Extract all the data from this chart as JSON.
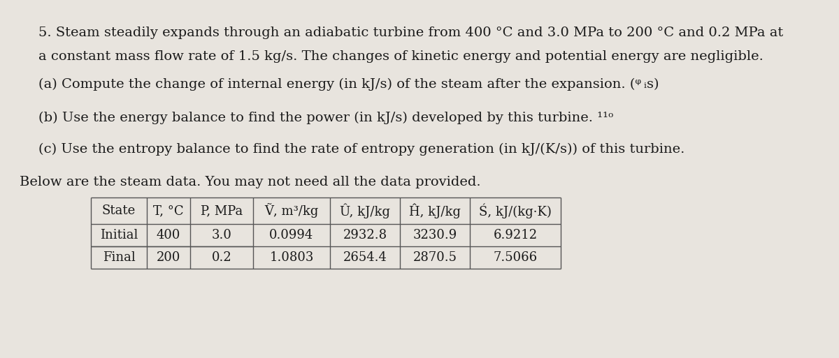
{
  "background_color": "#e8e4de",
  "text_color": "#1a1a1a",
  "title_line1": "5. Steam steadily expands through an adiabatic turbine from 400 °C and 3.0 MPa to 200 °C and 0.2 MPa at",
  "title_line2": "a constant mass flow rate of 1.5 kg/s. The changes of kinetic energy and potential energy are negligible.",
  "part_a": "(a) Compute the change of internal energy (in kJ/s) of the steam after the expansion. (ᵠ ᵢs)",
  "part_b": "(b) Use the energy balance to find the power (in kJ/s) developed by this turbine. ¹¹ᵒ",
  "part_c": "(c) Use the entropy balance to find the rate of entropy generation (in kJ/(K/s)) of this turbine.",
  "below_text": "Below are the steam data. You may not need all the data provided.",
  "col_headers": [
    "State",
    "T, °C",
    "P, MPa",
    "Ṽ, m³/kg",
    "Û, kJ/kg",
    "Ĥ, kJ/kg",
    "Ś, kJ/(kg·K)"
  ],
  "row_initial": [
    "Initial",
    "400",
    "3.0",
    "0.0994",
    "2932.8",
    "3230.9",
    "6.9212"
  ],
  "row_final": [
    "Final",
    "200",
    "0.2",
    "1.0803",
    "2654.4",
    "2870.5",
    "7.5066"
  ],
  "font_size_body": 14,
  "font_size_table": 13,
  "line_color": "#555555",
  "line_width": 1.0
}
